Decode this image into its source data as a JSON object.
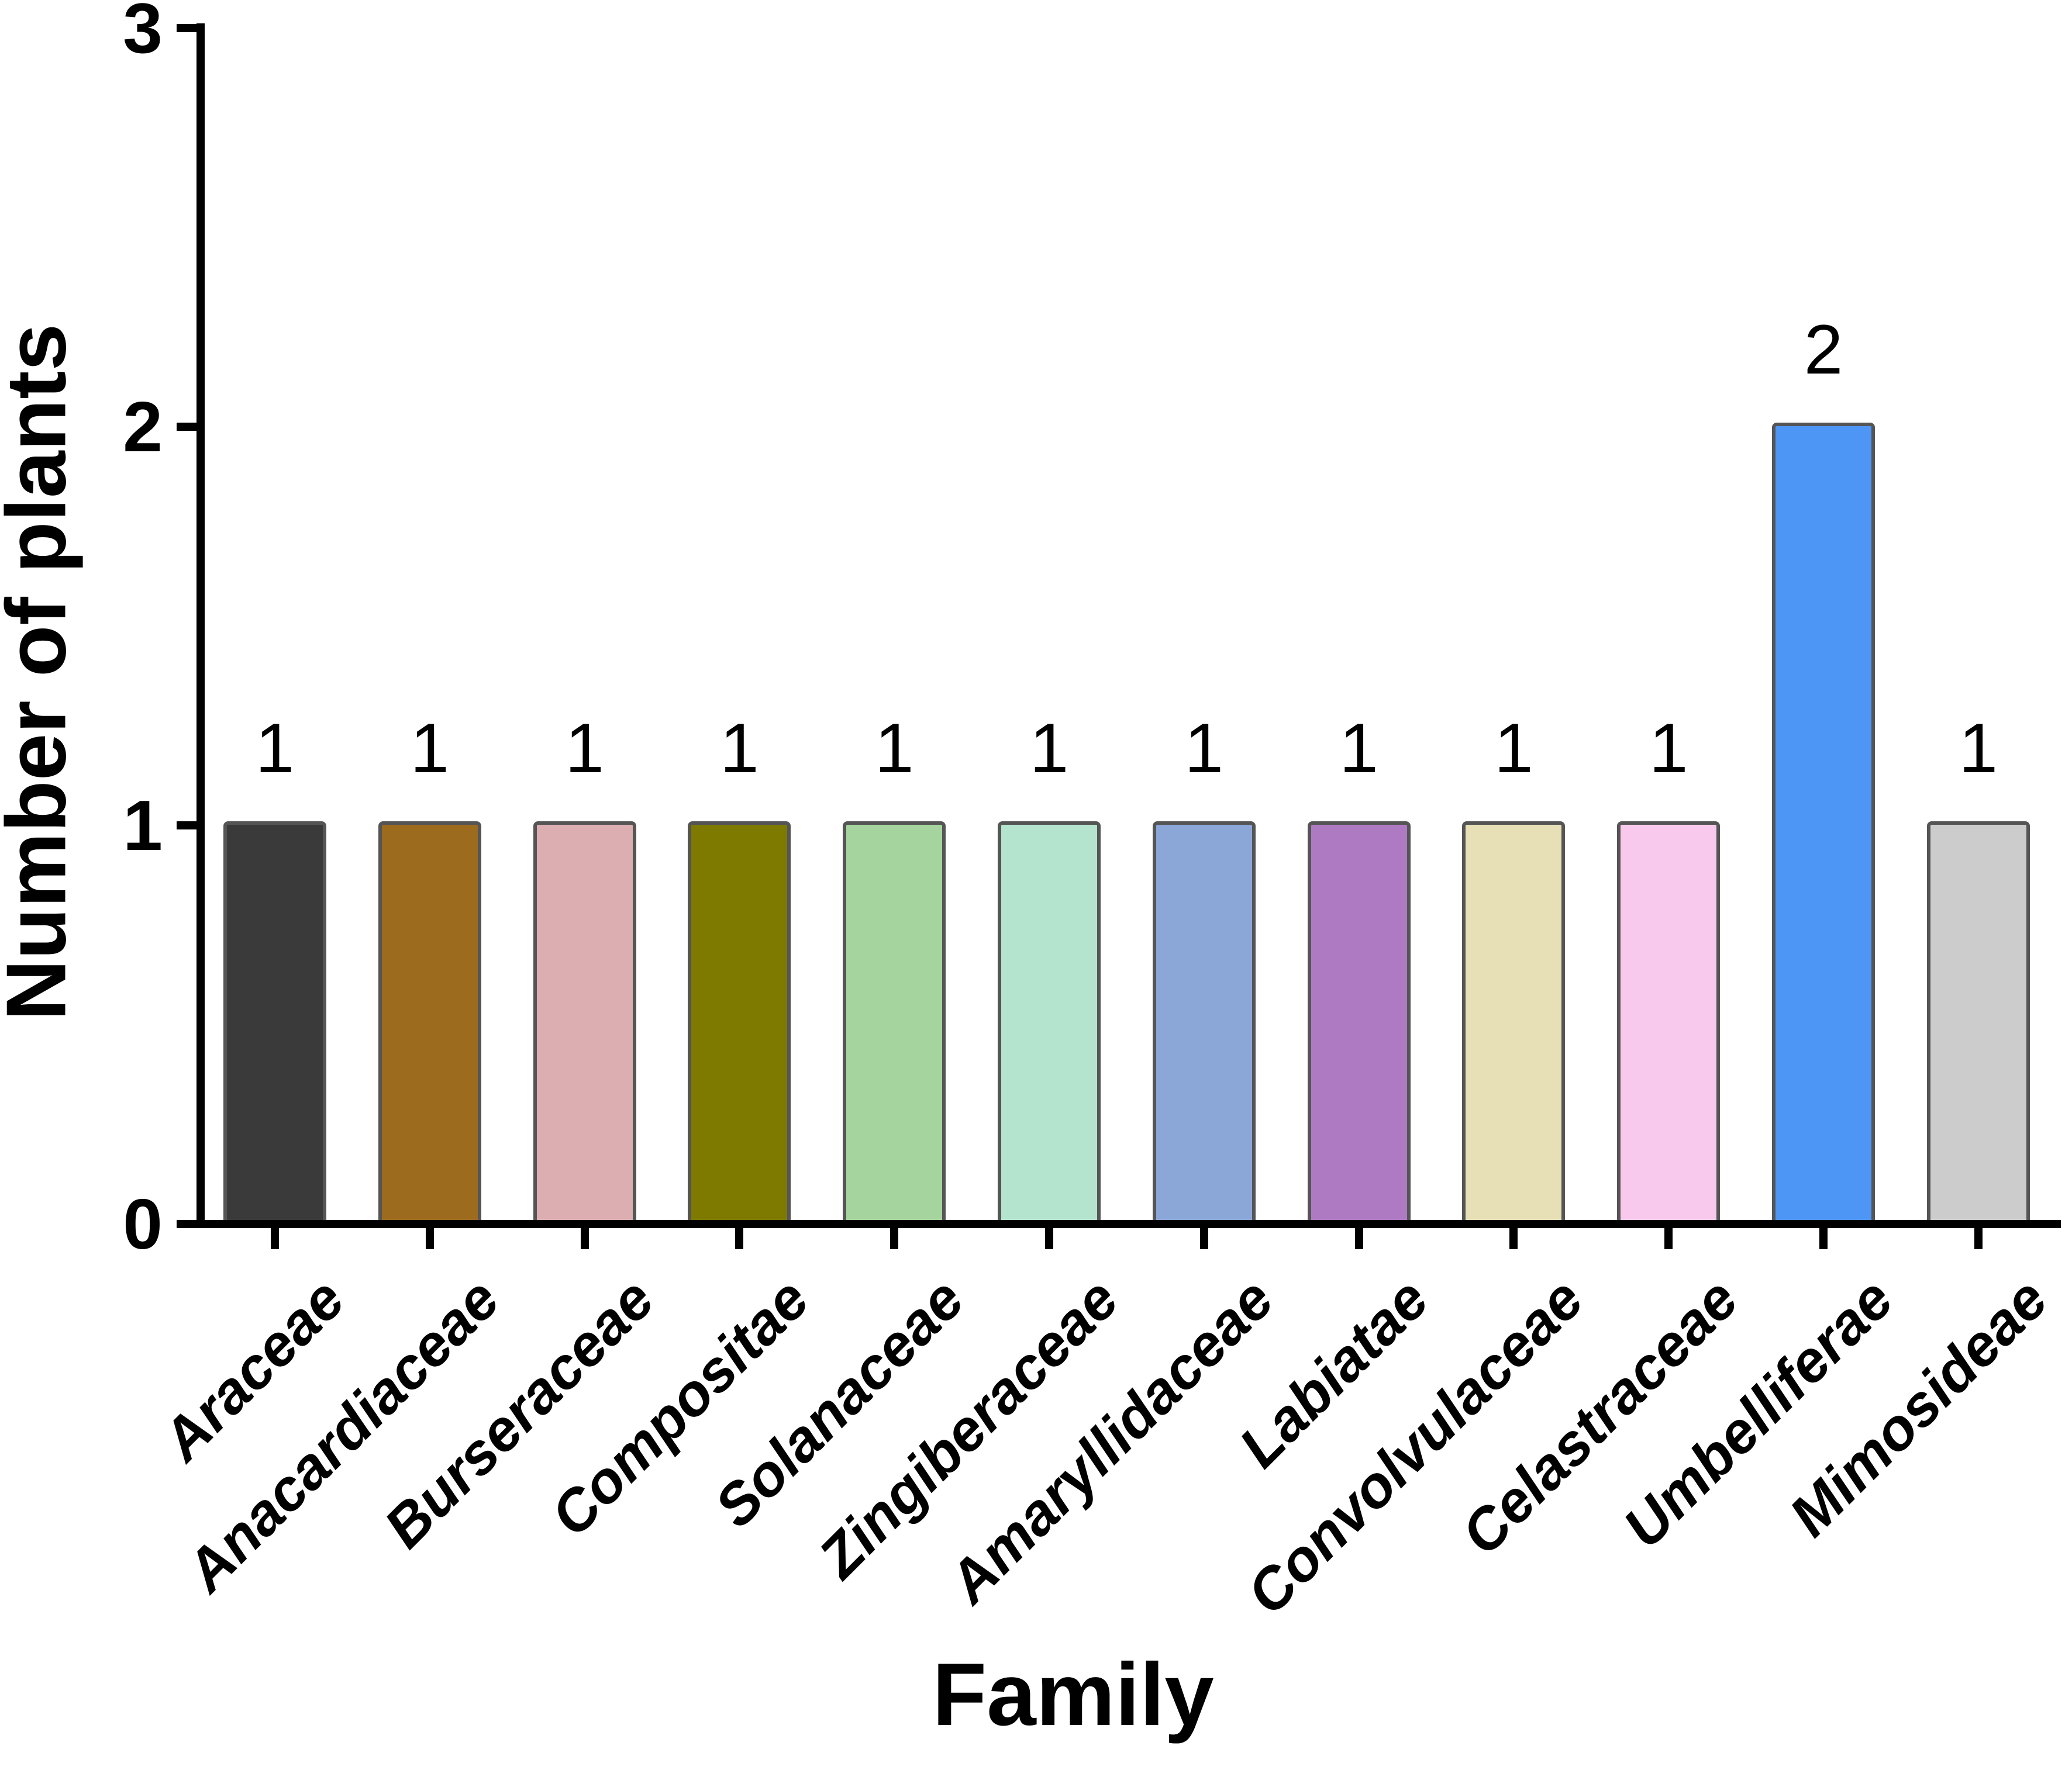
{
  "chart_data": {
    "type": "bar",
    "title": "",
    "xlabel": "Family",
    "ylabel": "Number of plants",
    "categories": [
      "Araceae",
      "Anacardiaceae",
      "Burseraceae",
      "Compositae",
      "Solanaceae",
      "Zingiberaceae",
      "Amaryllidaceae",
      "Labiatae",
      "Convolvulaceae",
      "Celastraceae",
      "Umbelliferae",
      "Mimosideae"
    ],
    "values": [
      1,
      1,
      1,
      1,
      1,
      1,
      1,
      1,
      1,
      1,
      2,
      1
    ],
    "bar_value_labels": [
      "1",
      "1",
      "1",
      "1",
      "1",
      "1",
      "1",
      "1",
      "1",
      "1",
      "2",
      "1"
    ],
    "bar_colors": [
      "#3a3a3a",
      "#9c6b1e",
      "#dcaeb1",
      "#7e7a00",
      "#a5d49e",
      "#b4e4cd",
      "#8ba7d7",
      "#ae7ac2",
      "#e7dfb6",
      "#f8c9ec",
      "#4d96f5",
      "#cccccc"
    ],
    "bar_border_color": "#555555",
    "axis_color": "#000000",
    "background_color": "#ffffff",
    "ylim": [
      0,
      3
    ],
    "yticks": [
      0,
      1,
      2,
      3
    ],
    "ytick_labels": [
      "0",
      "1",
      "2",
      "3"
    ],
    "grid": false,
    "legend": null
  }
}
